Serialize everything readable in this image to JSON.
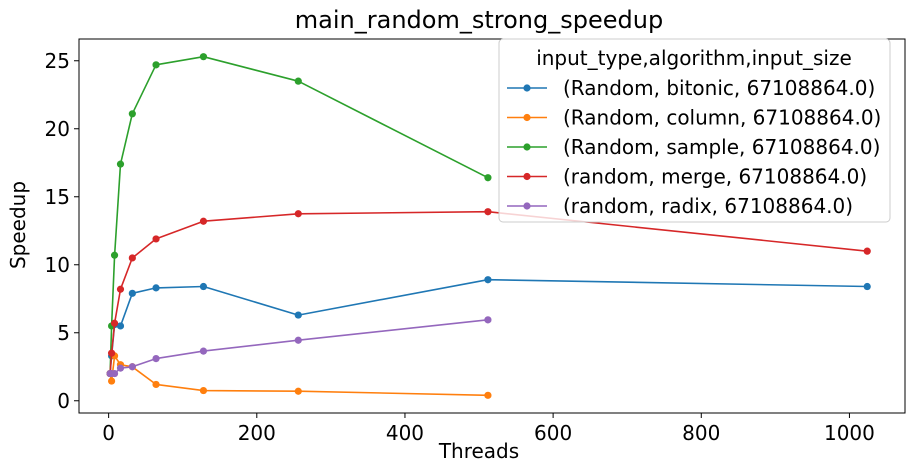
{
  "chart_data": {
    "type": "line",
    "title": "main_random_strong_speedup",
    "xlabel": "Threads",
    "ylabel": "Speedup",
    "xlim": [
      -40,
      1075
    ],
    "ylim": [
      -0.9,
      26.6
    ],
    "xticks": [
      0,
      200,
      400,
      600,
      800,
      1000
    ],
    "yticks": [
      0,
      5,
      10,
      15,
      20,
      25
    ],
    "grid": false,
    "legend": {
      "title": "input_type,algorithm,input_size",
      "placement": "upper-right"
    },
    "series": [
      {
        "name": "(Random, bitonic, 67108864.0)",
        "color": "#1f77b4",
        "x": [
          2,
          4,
          8,
          16,
          32,
          64,
          128,
          256,
          512,
          1024
        ],
        "y": [
          2.0,
          3.3,
          5.6,
          5.5,
          7.9,
          8.3,
          8.4,
          6.3,
          8.9,
          8.4
        ]
      },
      {
        "name": "(Random, column, 67108864.0)",
        "color": "#ff7f0e",
        "x": [
          2,
          4,
          8,
          16,
          32,
          64,
          128,
          256,
          512
        ],
        "y": [
          2.0,
          1.45,
          3.3,
          2.65,
          2.5,
          1.2,
          0.75,
          0.7,
          0.4
        ]
      },
      {
        "name": "(Random, sample, 67108864.0)",
        "color": "#2ca02c",
        "x": [
          2,
          4,
          8,
          16,
          32,
          64,
          128,
          256,
          512
        ],
        "y": [
          2.0,
          5.5,
          10.7,
          17.4,
          21.1,
          24.7,
          25.3,
          23.5,
          16.4
        ]
      },
      {
        "name": "(random, merge, 67108864.0)",
        "color": "#d62728",
        "x": [
          2,
          4,
          8,
          16,
          32,
          64,
          128,
          256,
          512,
          1024
        ],
        "y": [
          2.0,
          3.5,
          5.7,
          8.2,
          10.5,
          11.9,
          13.2,
          13.75,
          13.9,
          11.0
        ]
      },
      {
        "name": "(random, radix, 67108864.0)",
        "color": "#9467bd",
        "x": [
          2,
          4,
          8,
          16,
          32,
          64,
          128,
          256,
          512
        ],
        "y": [
          2.0,
          2.0,
          2.0,
          2.4,
          2.5,
          3.1,
          3.65,
          4.45,
          5.95
        ]
      }
    ]
  }
}
